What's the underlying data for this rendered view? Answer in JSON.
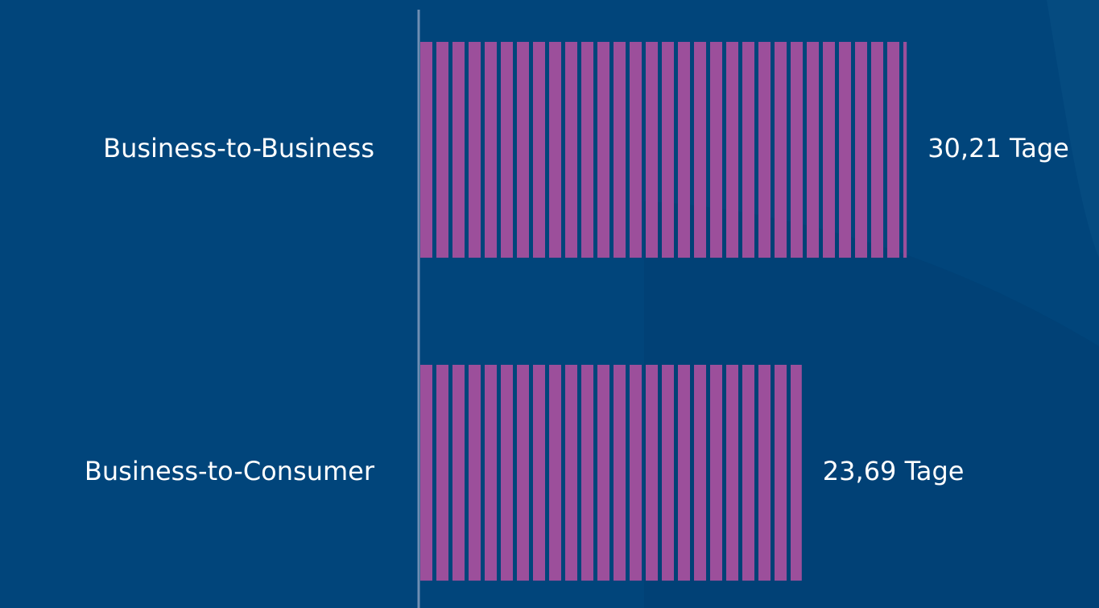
{
  "chart_data": {
    "type": "hbar",
    "categories": [
      "Business-to-Business",
      "Business-to-Consumer"
    ],
    "values": [
      30.21,
      23.69
    ],
    "value_labels": [
      "30,21 Tage",
      "23,69 Tage"
    ],
    "color": "#9c4f9b"
  }
}
